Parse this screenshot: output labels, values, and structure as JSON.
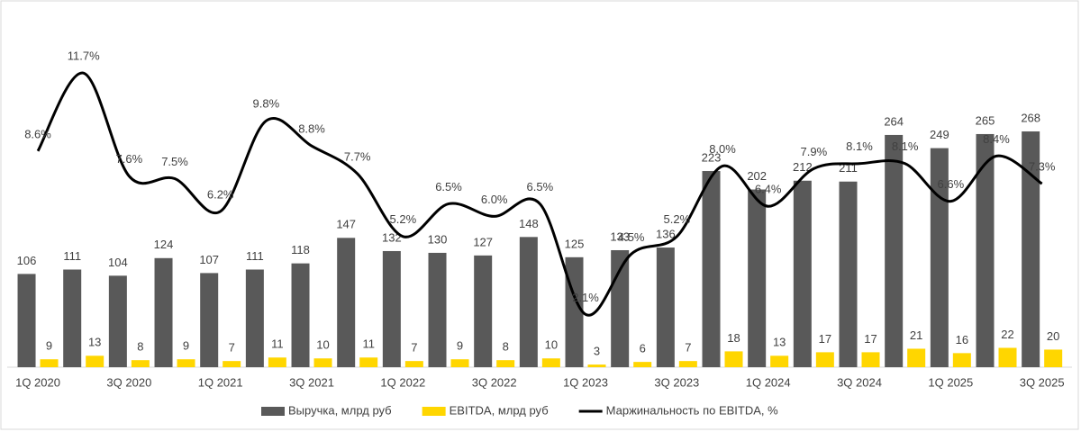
{
  "chart_data": {
    "type": "bar-line",
    "categories": [
      "1Q 2020",
      null,
      "3Q 2020",
      null,
      "1Q 2021",
      null,
      "3Q 2021",
      null,
      "1Q 2022",
      null,
      "3Q 2022",
      null,
      "1Q 2023",
      null,
      "3Q 2023",
      null,
      "1Q 2024",
      null,
      "3Q 2024",
      null,
      "1Q 2025",
      null,
      "3Q 2025"
    ],
    "series": [
      {
        "name": "Выручка, млрд руб",
        "type": "bar",
        "color": "#595959",
        "values": [
          106,
          111,
          104,
          124,
          107,
          111,
          118,
          147,
          132,
          130,
          127,
          148,
          125,
          133,
          136,
          223,
          202,
          212,
          211,
          264,
          249,
          265,
          268
        ]
      },
      {
        "name": "EBITDA, млрд руб",
        "type": "bar",
        "color": "#ffd600",
        "values": [
          9,
          13,
          8,
          9,
          7,
          11,
          10,
          11,
          7,
          9,
          8,
          10,
          3,
          6,
          7,
          18,
          13,
          17,
          17,
          21,
          16,
          22,
          20
        ]
      },
      {
        "name": "Маржинальность по EBITDA, %",
        "type": "line",
        "axis": "y2",
        "color": "#000000",
        "values": [
          8.6,
          11.7,
          7.6,
          7.5,
          6.2,
          9.8,
          8.8,
          7.7,
          5.2,
          6.5,
          6.0,
          6.5,
          2.1,
          4.5,
          5.2,
          8.0,
          6.4,
          7.9,
          8.1,
          8.1,
          6.6,
          8.4,
          7.3
        ],
        "value_labels": [
          "8.6%",
          "11.7%",
          "7.6%",
          "7.5%",
          "6.2%",
          "9.8%",
          "8.8%",
          "7.7%",
          "5.2%",
          "6.5%",
          "6.0%",
          "6.5%",
          "2.1%",
          "4.5%",
          "5.2%",
          "8.0%",
          "6.4%",
          "7.9%",
          "8.1%",
          "8.1%",
          "6.6%",
          "8.4%",
          "7.3%"
        ]
      }
    ],
    "ylim": [
      0,
      400
    ],
    "y2lim": [
      0,
      14
    ],
    "legend": "bottom"
  }
}
